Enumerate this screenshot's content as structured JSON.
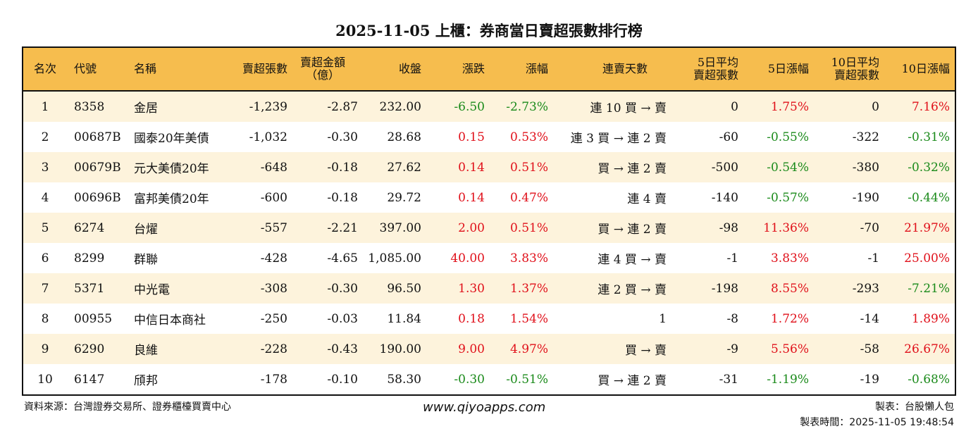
{
  "title": "2025-11-05 上櫃：券商當日賣超張數排行榜",
  "colors": {
    "header_bg": "#f6bd4e",
    "row_alt_bg": "#fdf3dc",
    "up": "#e0101a",
    "down": "#1a8a1a"
  },
  "columns": [
    "名次",
    "代號",
    "名稱",
    "賣超張數",
    "賣超金額\n（億）",
    "收盤",
    "漲跌",
    "漲幅",
    "連賣天數",
    "5日平均\n賣超張數",
    "5日漲幅",
    "10日平均\n賣超張數",
    "10日漲幅"
  ],
  "rows": [
    [
      "1",
      "8358",
      "金居",
      "-1,239",
      "-2.87",
      "232.00",
      "-6.50",
      "-2.73%",
      "連 10 買 → 賣",
      "0",
      "1.75%",
      "0",
      "7.16%"
    ],
    [
      "2",
      "00687B",
      "國泰20年美債",
      "-1,032",
      "-0.30",
      "28.68",
      "0.15",
      "0.53%",
      "連 3 買 → 連 2 賣",
      "-60",
      "-0.55%",
      "-322",
      "-0.31%"
    ],
    [
      "3",
      "00679B",
      "元大美債20年",
      "-648",
      "-0.18",
      "27.62",
      "0.14",
      "0.51%",
      "買 → 連 2 賣",
      "-500",
      "-0.54%",
      "-380",
      "-0.32%"
    ],
    [
      "4",
      "00696B",
      "富邦美債20年",
      "-600",
      "-0.18",
      "29.72",
      "0.14",
      "0.47%",
      "連 4 賣",
      "-140",
      "-0.57%",
      "-190",
      "-0.44%"
    ],
    [
      "5",
      "6274",
      "台燿",
      "-557",
      "-2.21",
      "397.00",
      "2.00",
      "0.51%",
      "買 → 連 2 賣",
      "-98",
      "11.36%",
      "-70",
      "21.97%"
    ],
    [
      "6",
      "8299",
      "群聯",
      "-428",
      "-4.65",
      "1,085.00",
      "40.00",
      "3.83%",
      "連 4 買 → 賣",
      "-1",
      "3.83%",
      "-1",
      "25.00%"
    ],
    [
      "7",
      "5371",
      "中光電",
      "-308",
      "-0.30",
      "96.50",
      "1.30",
      "1.37%",
      "連 2 買 → 賣",
      "-198",
      "8.55%",
      "-293",
      "-7.21%"
    ],
    [
      "8",
      "00955",
      "中信日本商社",
      "-250",
      "-0.03",
      "11.84",
      "0.18",
      "1.54%",
      "1",
      "-8",
      "1.72%",
      "-14",
      "1.89%"
    ],
    [
      "9",
      "6290",
      "良維",
      "-228",
      "-0.43",
      "190.00",
      "9.00",
      "4.97%",
      "買 → 賣",
      "-9",
      "5.56%",
      "-58",
      "26.67%"
    ],
    [
      "10",
      "6147",
      "頎邦",
      "-178",
      "-0.10",
      "58.30",
      "-0.30",
      "-0.51%",
      "買 → 連 2 賣",
      "-31",
      "-1.19%",
      "-19",
      "-0.68%"
    ]
  ],
  "footer": {
    "source": "資料來源：台灣證券交易所、證券櫃檯買賣中心",
    "website": "www.qiyoapps.com",
    "author": "製表：台股懶人包",
    "made_time": "製表時間：2025-11-05 19:48:54"
  }
}
